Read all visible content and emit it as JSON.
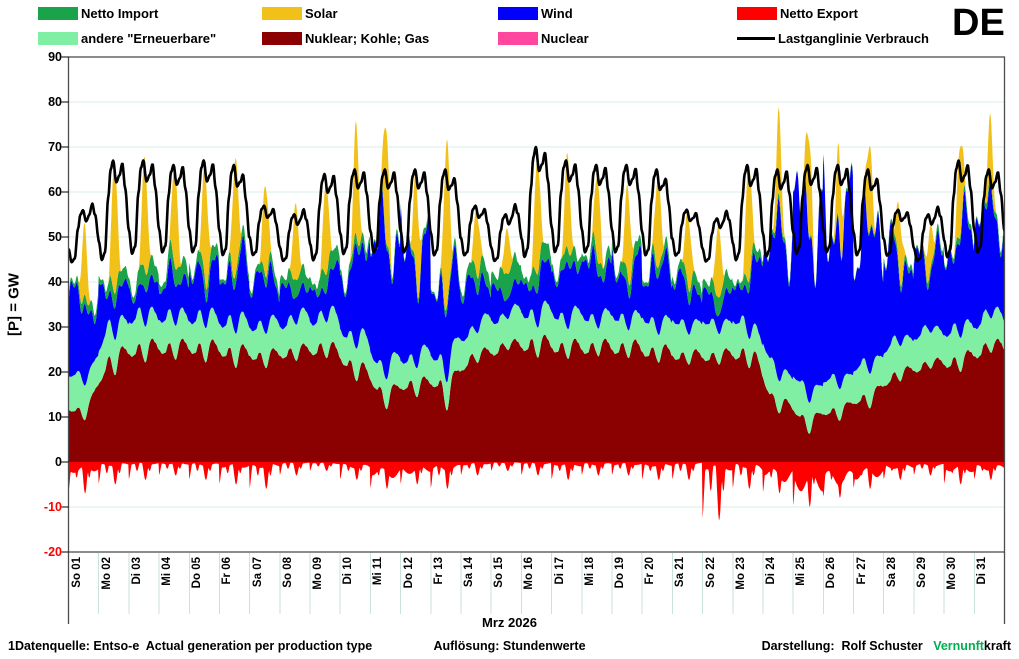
{
  "page": {
    "country_label": "DE"
  },
  "legend": {
    "items": [
      {
        "id": "netto-import",
        "label": "Netto Import",
        "color": "#1AA34A",
        "swatch": "box"
      },
      {
        "id": "solar",
        "label": "Solar",
        "color": "#F2C119",
        "swatch": "box"
      },
      {
        "id": "wind",
        "label": "Wind",
        "color": "#0000FB",
        "swatch": "box"
      },
      {
        "id": "netto-export",
        "label": "Netto Export",
        "color": "#FE0000",
        "swatch": "box"
      },
      {
        "id": "andere-erneuerbare",
        "label": "andere \"Erneuerbare\"",
        "color": "#80EFA4",
        "swatch": "box"
      },
      {
        "id": "nuklear-kohle-gas",
        "label": "Nuklear; Kohle; Gas",
        "color": "#8B0000",
        "swatch": "box"
      },
      {
        "id": "nuclear",
        "label": "Nuclear",
        "color": "#FF47A0",
        "swatch": "box"
      },
      {
        "id": "lastganglinie",
        "label": "Lastganglinie Verbrauch",
        "color": "#000000",
        "swatch": "line"
      }
    ]
  },
  "footer": {
    "source": "1Datenquelle: Entso-e  Actual generation per production type",
    "resolution": "Auflösung: Stundenwerte",
    "credit_prefix": "Darstellung:  Rolf Schuster   ",
    "brand_green": "Vernunft",
    "brand_black": "kraft"
  },
  "chart_data": {
    "type": "area",
    "stacked": true,
    "resolution": "hourly",
    "title": "DE",
    "xlabel": "Mrz 2026",
    "ylabel": "[P] = GW",
    "ylim": [
      -20,
      90
    ],
    "ytick_step": 10,
    "yticks": [
      90,
      80,
      70,
      60,
      50,
      40,
      30,
      20,
      10,
      0,
      -10,
      -20
    ],
    "grid": "horizontal",
    "legend_position": "top",
    "x_categories": [
      "So 01",
      "Mo 02",
      "Di 03",
      "Mi 04",
      "Do 05",
      "Fr 06",
      "Sa 07",
      "So 08",
      "Mo 09",
      "Di 10",
      "Mi 11",
      "Do 12",
      "Fr 13",
      "Sa 14",
      "So 15",
      "Mo 16",
      "Di 17",
      "Mi 18",
      "Do 19",
      "Fr 20",
      "Sa 21",
      "So 22",
      "Mo 23",
      "Di 24",
      "Mi 25",
      "Do 26",
      "Fr 27",
      "Sa 28",
      "So 29",
      "Mo 30",
      "Di 31"
    ],
    "series": [
      {
        "name": "Nuklear; Kohle; Gas",
        "color": "#8B0000",
        "role": "stack-bottom"
      },
      {
        "name": "andere \"Erneuerbare\"",
        "color": "#80EFA4",
        "role": "stack"
      },
      {
        "name": "Wind",
        "color": "#0000FB",
        "role": "stack"
      },
      {
        "name": "Netto Import",
        "color": "#1AA34A",
        "role": "stack"
      },
      {
        "name": "Solar",
        "color": "#F2C119",
        "role": "stack-top"
      },
      {
        "name": "Nuclear",
        "color": "#FF47A0",
        "role": "stack",
        "zero": true
      },
      {
        "name": "Netto Export",
        "color": "#FE0000",
        "role": "negative-area"
      },
      {
        "name": "Lastganglinie Verbrauch",
        "color": "#000000",
        "role": "line"
      }
    ],
    "daily_estimates_gw": {
      "conventional_base": [
        12,
        24,
        26,
        26,
        26,
        25,
        24,
        25,
        26,
        22,
        16,
        18,
        18,
        24,
        26,
        27,
        26,
        26,
        26,
        25,
        24,
        24,
        25,
        14,
        10,
        12,
        15,
        20,
        22,
        23,
        26
      ],
      "other_renewables": [
        8,
        8,
        8,
        7.5,
        7.5,
        7.5,
        7.5,
        8,
        8,
        7.5,
        7,
        7,
        7,
        7.5,
        8,
        8,
        8,
        7.5,
        7.5,
        7.5,
        8,
        8,
        7.5,
        8,
        7.5,
        7.5,
        8,
        8,
        8,
        7.5,
        7.5
      ],
      "wind_mean": [
        16,
        8,
        6,
        8,
        10,
        12,
        10,
        6,
        7,
        16,
        28,
        24,
        16,
        9,
        5,
        8,
        10,
        12,
        10,
        12,
        8,
        5,
        10,
        28,
        40,
        36,
        28,
        17,
        16,
        20,
        22
      ],
      "solar_peak": [
        16,
        29,
        25,
        22,
        25,
        26,
        20,
        17,
        20,
        25,
        25,
        22,
        37,
        14,
        10,
        25,
        21,
        18,
        20,
        20,
        16,
        16,
        26,
        19,
        21,
        17,
        19,
        14,
        10,
        20,
        14
      ],
      "net_import_peak": [
        3,
        4,
        5,
        5,
        4,
        3,
        3,
        5,
        5,
        3,
        2,
        2,
        2,
        5,
        7,
        5,
        4,
        4,
        4,
        3,
        4,
        5,
        3,
        2,
        1,
        1,
        1,
        2,
        2,
        2,
        2
      ],
      "net_export_peak": [
        7,
        5,
        4,
        3,
        4,
        5,
        6,
        3,
        2,
        4,
        6,
        5,
        6,
        3,
        2,
        3,
        4,
        3,
        3,
        4,
        4,
        13,
        6,
        7,
        10,
        8,
        6,
        4,
        3,
        5,
        4
      ],
      "load_min": [
        43,
        45,
        46,
        46,
        46,
        45,
        44,
        43,
        45,
        46,
        46,
        46,
        45,
        44,
        43,
        46,
        46,
        46,
        46,
        45,
        44,
        43,
        45,
        45,
        46,
        46,
        45,
        44,
        43,
        46,
        46
      ],
      "load_max": [
        57,
        67,
        67,
        66,
        67,
        66,
        58,
        56,
        64,
        65,
        65,
        65,
        65,
        58,
        56,
        70,
        67,
        66,
        66,
        65,
        57,
        55,
        66,
        65,
        66,
        66,
        65,
        57,
        56,
        67,
        65
      ]
    },
    "colors": {
      "grid": "#D9EDE4",
      "frame": "#4D4D4D",
      "day_tick": "#CBE2D6",
      "negative_tick_label": "#FF0000",
      "background": "#FFFFFF"
    }
  }
}
